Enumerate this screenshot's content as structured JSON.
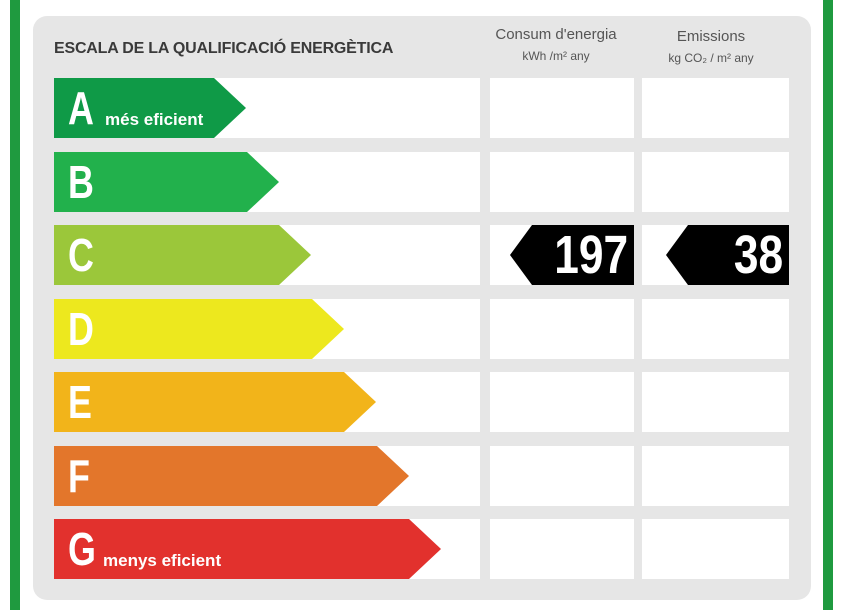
{
  "title": "ESCALA DE LA QUALIFICACIÓ ENERGÈTICA",
  "columns": {
    "energy": {
      "label": "Consum d'energia",
      "unit": "kWh /m² any"
    },
    "emissions": {
      "label": "Emissions",
      "unit": "kg CO₂ / m² any"
    }
  },
  "classes": [
    {
      "letter": "A",
      "sublabel": "més eficient",
      "color": "#0f9a47"
    },
    {
      "letter": "B",
      "sublabel": "",
      "color": "#22b14c"
    },
    {
      "letter": "C",
      "sublabel": "",
      "color": "#9bc73a"
    },
    {
      "letter": "D",
      "sublabel": "",
      "color": "#ede81e"
    },
    {
      "letter": "E",
      "sublabel": "",
      "color": "#f2b41a"
    },
    {
      "letter": "F",
      "sublabel": "",
      "color": "#e3762b"
    },
    {
      "letter": "G",
      "sublabel": "menys eficient",
      "color": "#e2312d"
    }
  ],
  "rating": {
    "class": "C",
    "energy_value": "197",
    "emissions_value": "38",
    "indicator_color": "#000000"
  }
}
